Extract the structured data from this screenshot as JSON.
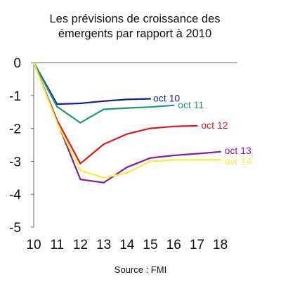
{
  "chart_data": {
    "type": "line",
    "title": [
      "Les prévisions de croissance des",
      "émergents par rapport à 2010"
    ],
    "source": "Source : FMI",
    "x": [
      10,
      11,
      12,
      13,
      14,
      15,
      16,
      17,
      18
    ],
    "x_tick_labels": [
      "10",
      "11",
      "12",
      "13",
      "14",
      "15",
      "16",
      "17",
      "18"
    ],
    "y_tick_labels": [
      "0",
      "-1",
      "-2",
      "-3",
      "-4",
      "-5"
    ],
    "y_ticks": [
      0,
      -1,
      -2,
      -3,
      -4,
      -5
    ],
    "xlim": [
      10,
      18.9
    ],
    "ylim": [
      -5,
      0
    ],
    "grid": false,
    "series": [
      {
        "name": "oct 10",
        "color": "#1d1f8c",
        "x": [
          10,
          11,
          12,
          13,
          14,
          15
        ],
        "values": [
          0,
          -1.26,
          -1.24,
          -1.17,
          -1.12,
          -1.1
        ]
      },
      {
        "name": "oct 11",
        "color": "#1a9a78",
        "x": [
          10,
          11,
          12,
          13,
          14,
          15,
          16
        ],
        "values": [
          0,
          -1.34,
          -1.83,
          -1.42,
          -1.38,
          -1.35,
          -1.3
        ]
      },
      {
        "name": "oct 12",
        "color": "#dd1a1a",
        "x": [
          10,
          11,
          12,
          13,
          14,
          15,
          16,
          17
        ],
        "values": [
          0,
          -1.75,
          -3.07,
          -2.48,
          -2.17,
          -2.0,
          -1.94,
          -1.92
        ]
      },
      {
        "name": "oct 13",
        "color": "#8a1aa0",
        "x": [
          10,
          11,
          12,
          13,
          14,
          15,
          16,
          17,
          18
        ],
        "values": [
          0,
          -1.78,
          -3.55,
          -3.65,
          -3.18,
          -2.9,
          -2.82,
          -2.77,
          -2.71
        ]
      },
      {
        "name": "avr 14",
        "color": "#f2f03a",
        "x": [
          10,
          11,
          12,
          13,
          14,
          15,
          16,
          17,
          18
        ],
        "values": [
          0,
          -1.82,
          -3.28,
          -3.5,
          -3.35,
          -3.0,
          -2.96,
          -2.95,
          -2.95
        ]
      }
    ]
  }
}
